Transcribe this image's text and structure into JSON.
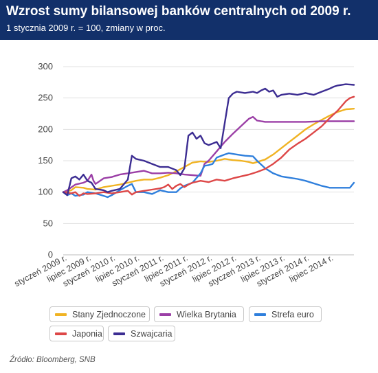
{
  "header": {
    "title": "Wzrost sumy bilansowej banków centralnych od 2009 r.",
    "subtitle": "1 stycznia 2009 r. = 100, zmiany w proc."
  },
  "source": "Źródło: Bloomberg, SNB",
  "chart_data": {
    "type": "line",
    "title": "Wzrost sumy bilansowej banków centralnych od 2009 r.",
    "subtitle": "1 stycznia 2009 r. = 100, zmiany w proc.",
    "ylim": [
      0,
      300
    ],
    "yticks": [
      0,
      50,
      100,
      150,
      200,
      250,
      300
    ],
    "xlim": [
      0,
      72
    ],
    "xticks": [
      {
        "x": 0,
        "label": "styczeń 2009 r."
      },
      {
        "x": 6,
        "label": "lipiec 2009 r."
      },
      {
        "x": 12,
        "label": "styczeń 2010 r."
      },
      {
        "x": 18,
        "label": "lipiec 2010 r."
      },
      {
        "x": 24,
        "label": "styczeń 2011 r."
      },
      {
        "x": 30,
        "label": "lipiec 2011 r."
      },
      {
        "x": 36,
        "label": "styczeń 2012 r."
      },
      {
        "x": 42,
        "label": "lipiec 2012 r."
      },
      {
        "x": 48,
        "label": "styczeń 2013 r."
      },
      {
        "x": 54,
        "label": "lipiec 2013 r."
      },
      {
        "x": 60,
        "label": "styczeń 2014 r."
      },
      {
        "x": 66,
        "label": "lipiec 2014 r."
      }
    ],
    "grid": "horizontal",
    "legend_position": "bottom",
    "series": [
      {
        "name": "Stany Zjednoczone",
        "color": "#f0b323",
        "values": [
          [
            0,
            100
          ],
          [
            2,
            103
          ],
          [
            3,
            108
          ],
          [
            5,
            107
          ],
          [
            6,
            105
          ],
          [
            8,
            104
          ],
          [
            10,
            108
          ],
          [
            12,
            110
          ],
          [
            14,
            112
          ],
          [
            16,
            115
          ],
          [
            18,
            118
          ],
          [
            20,
            120
          ],
          [
            22,
            120
          ],
          [
            24,
            123
          ],
          [
            26,
            127
          ],
          [
            28,
            133
          ],
          [
            30,
            140
          ],
          [
            32,
            147
          ],
          [
            34,
            149
          ],
          [
            36,
            148
          ],
          [
            38,
            150
          ],
          [
            40,
            153
          ],
          [
            42,
            151
          ],
          [
            44,
            150
          ],
          [
            46,
            148
          ],
          [
            47,
            146
          ],
          [
            48,
            148
          ],
          [
            50,
            152
          ],
          [
            52,
            160
          ],
          [
            54,
            170
          ],
          [
            56,
            180
          ],
          [
            58,
            190
          ],
          [
            60,
            200
          ],
          [
            62,
            208
          ],
          [
            64,
            215
          ],
          [
            66,
            222
          ],
          [
            68,
            228
          ],
          [
            70,
            232
          ],
          [
            72,
            233
          ]
        ]
      },
      {
        "name": "Wielka Brytania",
        "color": "#9b3fa6",
        "values": [
          [
            0,
            100
          ],
          [
            1,
            103
          ],
          [
            3,
            112
          ],
          [
            5,
            115
          ],
          [
            6,
            118
          ],
          [
            7,
            128
          ],
          [
            7.5,
            118
          ],
          [
            8,
            113
          ],
          [
            10,
            122
          ],
          [
            12,
            124
          ],
          [
            14,
            128
          ],
          [
            16,
            130
          ],
          [
            18,
            132
          ],
          [
            20,
            134
          ],
          [
            22,
            130
          ],
          [
            24,
            130
          ],
          [
            26,
            131
          ],
          [
            28,
            130
          ],
          [
            30,
            128
          ],
          [
            32,
            127
          ],
          [
            34,
            126
          ],
          [
            35,
            145
          ],
          [
            36,
            150
          ],
          [
            38,
            165
          ],
          [
            40,
            180
          ],
          [
            42,
            193
          ],
          [
            44,
            205
          ],
          [
            46,
            217
          ],
          [
            47,
            220
          ],
          [
            48,
            214
          ],
          [
            50,
            212
          ],
          [
            52,
            212
          ],
          [
            54,
            212
          ],
          [
            56,
            212
          ],
          [
            60,
            212
          ],
          [
            64,
            213
          ],
          [
            68,
            213
          ],
          [
            72,
            213
          ]
        ]
      },
      {
        "name": "Strefa euro",
        "color": "#2f7fdc",
        "values": [
          [
            0,
            100
          ],
          [
            1,
            95
          ],
          [
            2,
            98
          ],
          [
            3,
            94
          ],
          [
            5,
            96
          ],
          [
            6,
            100
          ],
          [
            8,
            98
          ],
          [
            10,
            94
          ],
          [
            11,
            92
          ],
          [
            12,
            95
          ],
          [
            14,
            103
          ],
          [
            16,
            110
          ],
          [
            17,
            113
          ],
          [
            18,
            100
          ],
          [
            20,
            100
          ],
          [
            22,
            97
          ],
          [
            24,
            103
          ],
          [
            26,
            100
          ],
          [
            28,
            100
          ],
          [
            29,
            106
          ],
          [
            30,
            110
          ],
          [
            32,
            115
          ],
          [
            34,
            130
          ],
          [
            35,
            142
          ],
          [
            36,
            143
          ],
          [
            37,
            145
          ],
          [
            38,
            155
          ],
          [
            40,
            160
          ],
          [
            41,
            162
          ],
          [
            43,
            160
          ],
          [
            45,
            158
          ],
          [
            47,
            157
          ],
          [
            48,
            150
          ],
          [
            50,
            138
          ],
          [
            52,
            130
          ],
          [
            54,
            125
          ],
          [
            56,
            123
          ],
          [
            58,
            121
          ],
          [
            60,
            118
          ],
          [
            62,
            114
          ],
          [
            64,
            110
          ],
          [
            66,
            107
          ],
          [
            68,
            107
          ],
          [
            70,
            107
          ],
          [
            71,
            107
          ],
          [
            72,
            115
          ]
        ]
      },
      {
        "name": "Japonia",
        "color": "#dd4747",
        "values": [
          [
            0,
            100
          ],
          [
            2,
            98
          ],
          [
            3,
            100
          ],
          [
            4,
            94
          ],
          [
            5,
            98
          ],
          [
            6,
            97
          ],
          [
            8,
            98
          ],
          [
            10,
            100
          ],
          [
            12,
            98
          ],
          [
            14,
            100
          ],
          [
            16,
            102
          ],
          [
            17,
            96
          ],
          [
            18,
            100
          ],
          [
            20,
            102
          ],
          [
            22,
            104
          ],
          [
            24,
            106
          ],
          [
            25,
            108
          ],
          [
            26,
            112
          ],
          [
            27,
            105
          ],
          [
            28,
            110
          ],
          [
            29,
            113
          ],
          [
            30,
            108
          ],
          [
            31,
            112
          ],
          [
            32,
            115
          ],
          [
            34,
            118
          ],
          [
            36,
            116
          ],
          [
            38,
            120
          ],
          [
            40,
            118
          ],
          [
            42,
            122
          ],
          [
            44,
            125
          ],
          [
            46,
            128
          ],
          [
            48,
            132
          ],
          [
            50,
            137
          ],
          [
            52,
            145
          ],
          [
            54,
            155
          ],
          [
            56,
            168
          ],
          [
            58,
            177
          ],
          [
            60,
            185
          ],
          [
            62,
            195
          ],
          [
            64,
            205
          ],
          [
            66,
            218
          ],
          [
            68,
            230
          ],
          [
            70,
            245
          ],
          [
            71,
            250
          ],
          [
            72,
            252
          ]
        ]
      },
      {
        "name": "Szwajcaria",
        "color": "#3c2d92",
        "values": [
          [
            0,
            100
          ],
          [
            1,
            95
          ],
          [
            2,
            122
          ],
          [
            3,
            125
          ],
          [
            4,
            120
          ],
          [
            5,
            128
          ],
          [
            6,
            118
          ],
          [
            7,
            115
          ],
          [
            8,
            105
          ],
          [
            10,
            103
          ],
          [
            11,
            100
          ],
          [
            12,
            102
          ],
          [
            14,
            105
          ],
          [
            16,
            120
          ],
          [
            17,
            158
          ],
          [
            18,
            153
          ],
          [
            20,
            150
          ],
          [
            22,
            145
          ],
          [
            24,
            140
          ],
          [
            26,
            140
          ],
          [
            28,
            135
          ],
          [
            29,
            127
          ],
          [
            30,
            138
          ],
          [
            31,
            190
          ],
          [
            32,
            195
          ],
          [
            33,
            185
          ],
          [
            34,
            190
          ],
          [
            35,
            178
          ],
          [
            36,
            175
          ],
          [
            38,
            180
          ],
          [
            39,
            170
          ],
          [
            40,
            210
          ],
          [
            41,
            250
          ],
          [
            42,
            257
          ],
          [
            43,
            260
          ],
          [
            45,
            258
          ],
          [
            47,
            260
          ],
          [
            48,
            258
          ],
          [
            49,
            262
          ],
          [
            50,
            265
          ],
          [
            51,
            260
          ],
          [
            52,
            262
          ],
          [
            53,
            252
          ],
          [
            54,
            255
          ],
          [
            56,
            257
          ],
          [
            58,
            255
          ],
          [
            60,
            258
          ],
          [
            62,
            255
          ],
          [
            64,
            260
          ],
          [
            66,
            265
          ],
          [
            67,
            268
          ],
          [
            68,
            270
          ],
          [
            70,
            272
          ],
          [
            72,
            271
          ]
        ]
      }
    ]
  }
}
